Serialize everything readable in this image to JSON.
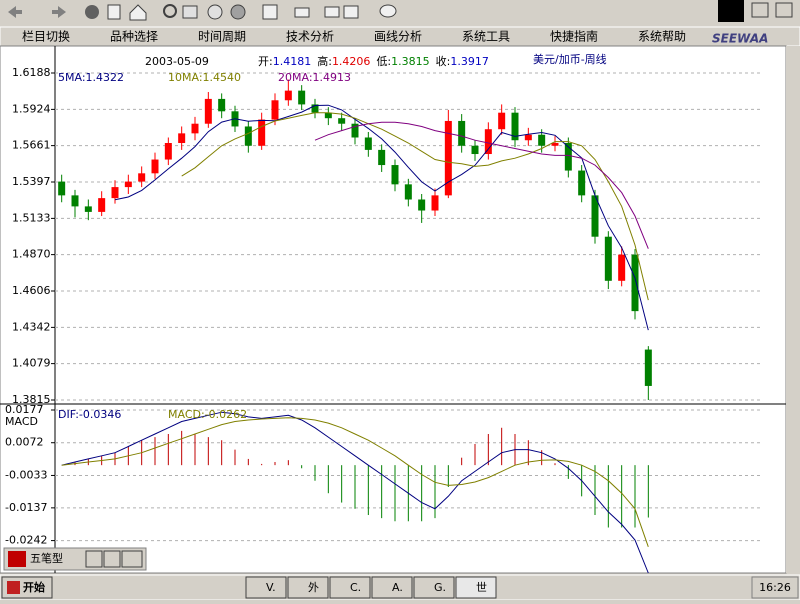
{
  "menu": [
    "栏目切换",
    "品种选择",
    "时间周期",
    "技术分析",
    "画线分析",
    "系统工具",
    "快捷指南",
    "系统帮助"
  ],
  "logo": "SEEWAA",
  "chart_data": [
    {
      "type": "candlestick",
      "title": "美元/加币-周线",
      "date": "2003-05-09",
      "info": [
        {
          "label": "开:",
          "value": 1.4181,
          "color": "#0000c0"
        },
        {
          "label": "高:",
          "value": 1.4206,
          "color": "#e00000"
        },
        {
          "label": "低:",
          "value": 1.3815,
          "color": "#008000"
        },
        {
          "label": "收:",
          "value": 1.3917,
          "color": "#0000c0"
        }
      ],
      "ylim": [
        1.3815,
        1.6188
      ],
      "yticks": [
        1.6188,
        1.5924,
        1.5661,
        1.5397,
        1.5133,
        {
          "value": 1.487,
          "label": "1.4870"
        },
        1.4606,
        1.4342,
        1.4079,
        1.3815
      ],
      "grid": true,
      "up_color": "#ff0000",
      "down_color": "#008000",
      "candles": {
        "open": [
          1.54,
          1.53,
          1.522,
          1.518,
          1.528,
          1.536,
          1.54,
          1.546,
          1.556,
          1.568,
          1.575,
          1.582,
          1.6,
          1.591,
          1.58,
          1.566,
          1.585,
          1.599,
          1.606,
          1.596,
          1.59,
          1.586,
          1.582,
          1.572,
          1.563,
          1.552,
          1.538,
          1.527,
          1.519,
          1.53,
          1.584,
          1.566,
          1.56,
          1.578,
          1.59,
          1.57,
          1.574,
          1.566,
          1.568,
          1.548,
          1.53,
          1.5,
          1.468,
          1.487,
          1.4181
        ],
        "high": [
          1.545,
          1.534,
          1.527,
          1.533,
          1.541,
          1.545,
          1.551,
          1.561,
          1.572,
          1.58,
          1.587,
          1.605,
          1.604,
          1.595,
          1.584,
          1.59,
          1.604,
          1.614,
          1.61,
          1.6,
          1.594,
          1.59,
          1.586,
          1.576,
          1.567,
          1.556,
          1.542,
          1.531,
          1.535,
          1.592,
          1.589,
          1.57,
          1.583,
          1.596,
          1.594,
          1.579,
          1.578,
          1.573,
          1.572,
          1.552,
          1.534,
          1.504,
          1.493,
          1.491,
          1.4206
        ],
        "low": [
          1.525,
          1.514,
          1.512,
          1.515,
          1.524,
          1.531,
          1.536,
          1.542,
          1.552,
          1.563,
          1.57,
          1.579,
          1.586,
          1.576,
          1.561,
          1.563,
          1.581,
          1.595,
          1.592,
          1.586,
          1.581,
          1.577,
          1.567,
          1.558,
          1.547,
          1.533,
          1.522,
          1.51,
          1.515,
          1.528,
          1.561,
          1.555,
          1.556,
          1.574,
          1.565,
          1.566,
          1.561,
          1.562,
          1.543,
          1.525,
          1.495,
          1.462,
          1.464,
          1.44,
          1.3815
        ],
        "close": [
          1.53,
          1.522,
          1.518,
          1.528,
          1.536,
          1.54,
          1.546,
          1.556,
          1.568,
          1.575,
          1.582,
          1.6,
          1.591,
          1.58,
          1.566,
          1.585,
          1.599,
          1.606,
          1.596,
          1.59,
          1.586,
          1.582,
          1.572,
          1.563,
          1.552,
          1.538,
          1.527,
          1.519,
          1.53,
          1.584,
          1.566,
          1.56,
          1.578,
          1.59,
          1.57,
          1.574,
          1.566,
          1.568,
          1.548,
          1.53,
          1.5,
          1.468,
          1.487,
          1.446,
          1.3917
        ]
      },
      "series": [
        {
          "name": "5MA:1.4322",
          "color": "#000080",
          "values": [
            null,
            null,
            null,
            null,
            1.5268,
            1.5288,
            1.5336,
            1.5412,
            1.5492,
            1.557,
            1.5654,
            1.5762,
            1.5832,
            1.5856,
            1.5838,
            1.5844,
            1.5842,
            1.5872,
            1.5904,
            1.5952,
            1.5954,
            1.592,
            1.5852,
            1.5786,
            1.571,
            1.5614,
            1.5504,
            1.5398,
            1.5332,
            1.5396,
            1.5452,
            1.5518,
            1.5636,
            1.5756,
            1.5728,
            1.5744,
            1.5756,
            1.5736,
            1.5652,
            1.5572,
            1.53,
            1.508,
            1.492,
            1.47,
            1.4322
          ]
        },
        {
          "name": "10MA:1.4540",
          "color": "#808000",
          "values": [
            null,
            null,
            null,
            null,
            null,
            null,
            null,
            null,
            null,
            1.544,
            1.55,
            1.558,
            1.566,
            1.571,
            1.575,
            1.58,
            1.584,
            1.586,
            1.588,
            1.59,
            1.59,
            1.589,
            1.586,
            1.582,
            1.578,
            1.573,
            1.568,
            1.562,
            1.556,
            1.554,
            1.553,
            1.551,
            1.552,
            1.555,
            1.557,
            1.56,
            1.564,
            1.569,
            1.569,
            1.566,
            1.556,
            1.54,
            1.522,
            1.494,
            1.454
          ]
        },
        {
          "name": "20MA:1.4913",
          "color": "#800080",
          "values": [
            null,
            null,
            null,
            null,
            null,
            null,
            null,
            null,
            null,
            null,
            null,
            null,
            null,
            null,
            null,
            null,
            null,
            null,
            null,
            1.57,
            1.574,
            1.577,
            1.58,
            1.582,
            1.583,
            1.583,
            1.582,
            1.58,
            1.577,
            1.575,
            1.573,
            1.57,
            1.568,
            1.566,
            1.564,
            1.562,
            1.56,
            1.559,
            1.559,
            1.557,
            1.552,
            1.543,
            1.532,
            1.515,
            1.4913
          ]
        }
      ]
    },
    {
      "type": "macd",
      "panel_label": "MACD",
      "ylim": [
        -0.0346,
        0.0177
      ],
      "yticks": [
        0.0177,
        0.0072,
        -0.0033,
        -0.0137,
        -0.0242
      ],
      "grid": true,
      "series": [
        {
          "name": "DIF:-0.0346",
          "color": "#000080",
          "values": [
            0,
            0.001,
            0.002,
            0.003,
            0.004,
            0.006,
            0.008,
            0.01,
            0.012,
            0.014,
            0.015,
            0.016,
            0.017,
            0.0165,
            0.0155,
            0.015,
            0.0155,
            0.016,
            0.0145,
            0.012,
            0.009,
            0.006,
            0.003,
            0,
            -0.003,
            -0.006,
            -0.009,
            -0.012,
            -0.014,
            -0.01,
            -0.005,
            -0.002,
            0.001,
            0.004,
            0.005,
            0.005,
            0.004,
            0.002,
            -0.001,
            -0.005,
            -0.01,
            -0.015,
            -0.019,
            -0.024,
            -0.0346
          ]
        },
        {
          "name": "MACD:-0.0262",
          "color": "#808000",
          "values": [
            0,
            0.0005,
            0.001,
            0.0015,
            0.002,
            0.003,
            0.004,
            0.0055,
            0.007,
            0.0085,
            0.01,
            0.0115,
            0.013,
            0.014,
            0.0145,
            0.0148,
            0.015,
            0.0152,
            0.015,
            0.0145,
            0.0135,
            0.012,
            0.01,
            0.008,
            0.0055,
            0.003,
            0,
            -0.003,
            -0.0055,
            -0.0065,
            -0.0062,
            -0.0054,
            -0.004,
            -0.002,
            0,
            0.001,
            0.0016,
            0.0017,
            0.0012,
            0,
            -0.002,
            -0.005,
            -0.009,
            -0.014,
            -0.0262
          ]
        }
      ],
      "histogram": {
        "up_color": "#c00000",
        "down_color": "#008000",
        "values": [
          0,
          0.001,
          0.002,
          0.003,
          0.004,
          0.006,
          0.008,
          0.009,
          0.01,
          0.011,
          0.01,
          0.009,
          0.008,
          0.005,
          0.002,
          0.0004,
          0.001,
          0.0016,
          -0.001,
          -0.005,
          -0.009,
          -0.012,
          -0.014,
          -0.016,
          -0.017,
          -0.018,
          -0.018,
          -0.018,
          -0.017,
          -0.007,
          0.0024,
          0.0068,
          0.01,
          0.012,
          0.01,
          0.008,
          0.0048,
          0.0006,
          -0.0044,
          -0.01,
          -0.016,
          -0.02,
          -0.02,
          -0.02,
          -0.0168
        ]
      }
    }
  ],
  "ime": "五笔型",
  "taskbar": {
    "start": "开始",
    "tasks": [
      "V.",
      "外",
      "C.",
      "A.",
      "G.",
      "世"
    ],
    "clock": "16:26"
  }
}
